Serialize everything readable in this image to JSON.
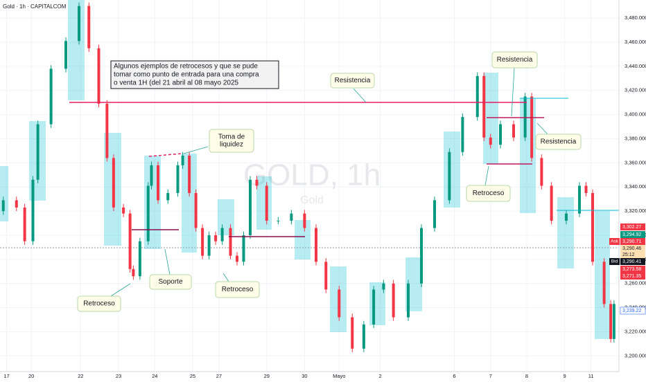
{
  "chart_data": {
    "type": "candlestick",
    "title": "Gold · 1h · CAPITALCOM",
    "watermark": "GOLD, 1h",
    "watermark_sub": "Gold",
    "up_color": "#089981",
    "down_color": "#f23645",
    "grid": true,
    "x": [
      0,
      8,
      13,
      18,
      21,
      29,
      38,
      46,
      52,
      58,
      63,
      67,
      73,
      77,
      79,
      83,
      88,
      90,
      94,
      100,
      106,
      109,
      113,
      117,
      121,
      125,
      129,
      133,
      138,
      142,
      146,
      150,
      154,
      160,
      167,
      175,
      183,
      190,
      196,
      204,
      212,
      219,
      225,
      231,
      237,
      246,
      254,
      262,
      271,
      279,
      288,
      292,
      296,
      302,
      310,
      317,
      321,
      327,
      333,
      342,
      350,
      354,
      358,
      365,
      369,
      371
    ],
    "open": [
      3320,
      3329,
      3323,
      3295,
      3346,
      3392,
      3438,
      3461,
      3490,
      3455,
      3409,
      3364,
      3323,
      3318,
      3272,
      3266,
      3295,
      3341,
      3358,
      3329,
      3335,
      3358,
      3366,
      3335,
      3306,
      3283,
      3300,
      3295,
      3306,
      3283,
      3278,
      3300,
      3346,
      3341,
      3312,
      3312,
      3318,
      3306,
      3278,
      3255,
      3232,
      3206,
      3226,
      3255,
      3260,
      3232,
      3260,
      3306,
      3329,
      3369,
      3398,
      3432,
      3381,
      3375,
      3392,
      3381,
      3415,
      3364,
      3341,
      3312,
      3318,
      3341,
      3335,
      3278,
      3243,
      3214
    ],
    "high": [
      3332,
      3332,
      3326,
      3349,
      3395,
      3441,
      3464,
      3493,
      3493,
      3458,
      3412,
      3367,
      3326,
      3321,
      3275,
      3298,
      3344,
      3361,
      3361,
      3338,
      3361,
      3369,
      3369,
      3338,
      3309,
      3303,
      3303,
      3309,
      3309,
      3286,
      3303,
      3349,
      3349,
      3344,
      3315,
      3321,
      3321,
      3309,
      3281,
      3258,
      3235,
      3229,
      3258,
      3263,
      3263,
      3263,
      3309,
      3332,
      3372,
      3401,
      3435,
      3435,
      3384,
      3395,
      3395,
      3418,
      3418,
      3367,
      3344,
      3321,
      3344,
      3344,
      3338,
      3281,
      3246,
      3246
    ],
    "low": [
      3317,
      3320,
      3292,
      3292,
      3343,
      3389,
      3435,
      3458,
      3452,
      3406,
      3361,
      3320,
      3315,
      3269,
      3263,
      3263,
      3292,
      3338,
      3326,
      3326,
      3332,
      3355,
      3332,
      3303,
      3280,
      3280,
      3292,
      3292,
      3280,
      3275,
      3275,
      3297,
      3338,
      3309,
      3309,
      3309,
      3303,
      3275,
      3252,
      3229,
      3203,
      3203,
      3223,
      3252,
      3229,
      3229,
      3257,
      3303,
      3326,
      3366,
      3395,
      3378,
      3372,
      3372,
      3378,
      3378,
      3361,
      3338,
      3309,
      3309,
      3315,
      3332,
      3275,
      3240,
      3211,
      3211
    ],
    "close": [
      3329,
      3323,
      3295,
      3346,
      3392,
      3438,
      3461,
      3490,
      3455,
      3409,
      3364,
      3323,
      3318,
      3272,
      3266,
      3295,
      3341,
      3358,
      3329,
      3335,
      3358,
      3366,
      3335,
      3306,
      3283,
      3300,
      3295,
      3306,
      3283,
      3278,
      3300,
      3346,
      3341,
      3312,
      3312,
      3318,
      3306,
      3278,
      3255,
      3232,
      3206,
      3226,
      3255,
      3260,
      3232,
      3260,
      3306,
      3329,
      3369,
      3398,
      3432,
      3381,
      3375,
      3392,
      3381,
      3415,
      3364,
      3341,
      3312,
      3318,
      3341,
      3335,
      3278,
      3243,
      3214,
      3243
    ],
    "xlim": [
      -2,
      374
    ],
    "ylim": [
      3187,
      3495
    ],
    "xticks": [
      {
        "value": 2,
        "label": "17"
      },
      {
        "value": 17,
        "label": "20"
      },
      {
        "value": 47,
        "label": "22"
      },
      {
        "value": 70,
        "label": "23"
      },
      {
        "value": 92,
        "label": "24"
      },
      {
        "value": 115,
        "label": "25"
      },
      {
        "value": 131,
        "label": "27"
      },
      {
        "value": 160,
        "label": "29"
      },
      {
        "value": 183,
        "label": "30"
      },
      {
        "value": 204,
        "label": "Mayo"
      },
      {
        "value": 229,
        "label": "2"
      },
      {
        "value": 274,
        "label": "6"
      },
      {
        "value": 296,
        "label": "7"
      },
      {
        "value": 318,
        "label": "8"
      },
      {
        "value": 341,
        "label": "9"
      },
      {
        "value": 357,
        "label": "11"
      }
    ],
    "yticks": [
      {
        "value": 3200,
        "label": "3,200.000"
      },
      {
        "value": 3220,
        "label": "3,220.000"
      },
      {
        "value": 3240,
        "label": "3,240.000"
      },
      {
        "value": 3260,
        "label": "3,260.000"
      },
      {
        "value": 3280,
        "label": "3,280.000"
      },
      {
        "value": 3300,
        "label": "3,300.000"
      },
      {
        "value": 3320,
        "label": "3,320.000"
      },
      {
        "value": 3340,
        "label": "3,340.000"
      },
      {
        "value": 3360,
        "label": "3,360.000"
      },
      {
        "value": 3380,
        "label": "3,380.000"
      },
      {
        "value": 3400,
        "label": "3,400.000"
      },
      {
        "value": 3420,
        "label": "3,420.000"
      },
      {
        "value": 3440,
        "label": "3,440.000"
      },
      {
        "value": 3460,
        "label": "3,460.000"
      },
      {
        "value": 3480,
        "label": "3,480.000"
      }
    ],
    "annotations": [
      {
        "text": [
          "Algunos ejemplos de retrocesos y que se pude",
          "tomar como punto de entrada para una compra",
          "o venta 1H (del 21 abril al 08 mayo 2025"
        ]
      },
      {
        "text": [
          "Resistencia"
        ]
      },
      {
        "text": [
          "Toma de",
          "liquidez"
        ]
      },
      {
        "text": [
          "Retroceso"
        ]
      },
      {
        "text": [
          "Soporte"
        ]
      },
      {
        "text": [
          "Retroceso"
        ]
      },
      {
        "text": [
          "Retroceso"
        ]
      },
      {
        "text": [
          "Resistencia"
        ]
      },
      {
        "text": [
          "Resistencia"
        ]
      }
    ],
    "price_tags": [
      {
        "text": "3,302.27"
      },
      {
        "text": "3,294.92"
      },
      {
        "label": "Ask",
        "text": "3,290.71"
      },
      {
        "text": "3,290.46"
      },
      {
        "text": "25:12"
      },
      {
        "label": "Bid",
        "text": "3,290.41"
      },
      {
        "text": "3,273.58"
      },
      {
        "text": "3,271.35"
      },
      {
        "text": "3,239.22"
      }
    ]
  }
}
